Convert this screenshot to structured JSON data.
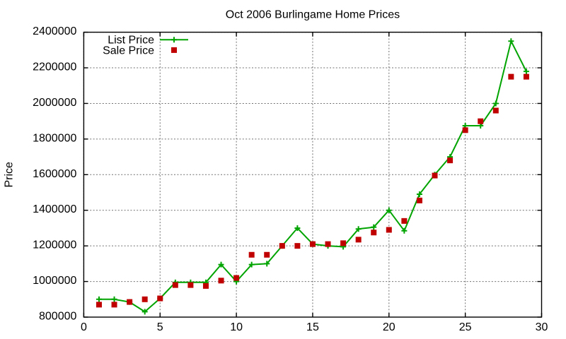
{
  "chart_data": {
    "type": "line",
    "title": "Oct 2006 Burlingame Home Prices",
    "xlabel": "",
    "ylabel": "Price",
    "xlim": [
      0,
      30
    ],
    "ylim": [
      800000,
      2400000
    ],
    "xticks": [
      0,
      5,
      10,
      15,
      20,
      25,
      30
    ],
    "yticks": [
      800000,
      1000000,
      1200000,
      1400000,
      1600000,
      1800000,
      2000000,
      2200000,
      2400000
    ],
    "grid": true,
    "grid_color": "#707070",
    "border_color": "#000000",
    "text_color": "#000000",
    "background_color": "#ffffff",
    "legend_position": "top-left-inside",
    "x": [
      1,
      2,
      3,
      4,
      5,
      6,
      7,
      8,
      9,
      10,
      11,
      12,
      13,
      14,
      15,
      16,
      17,
      18,
      19,
      20,
      21,
      22,
      23,
      24,
      25,
      26,
      27,
      28,
      29
    ],
    "series": [
      {
        "name": "List Price",
        "style": "line-with-plus-markers",
        "color": "#00a400",
        "values": [
          900000,
          900000,
          885000,
          830000,
          905000,
          995000,
          995000,
          995000,
          1095000,
          1000000,
          1095000,
          1100000,
          1200000,
          1300000,
          1210000,
          1200000,
          1195000,
          1295000,
          1305000,
          1400000,
          1285000,
          1490000,
          1600000,
          1700000,
          1875000,
          1875000,
          2000000,
          2350000,
          2180000
        ]
      },
      {
        "name": "Sale Price",
        "style": "square-markers",
        "color": "#c00000",
        "values": [
          870000,
          870000,
          885000,
          900000,
          905000,
          980000,
          980000,
          975000,
          1005000,
          1020000,
          1150000,
          1150000,
          1200000,
          1200000,
          1210000,
          1210000,
          1215000,
          1235000,
          1275000,
          1290000,
          1340000,
          1455000,
          1595000,
          1680000,
          1850000,
          1900000,
          1960000,
          2150000,
          2150000
        ]
      }
    ]
  }
}
